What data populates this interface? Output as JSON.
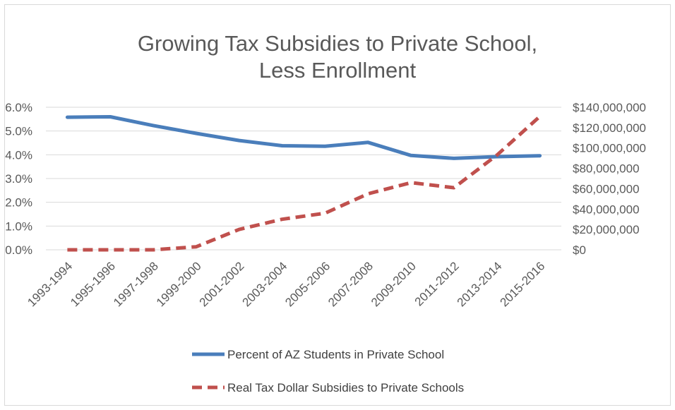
{
  "chart_data": {
    "type": "line",
    "title_lines": [
      "Growing Tax Subsidies to Private School,",
      "Less Enrollment"
    ],
    "categories": [
      "1993-1994",
      "1995-1996",
      "1997-1998",
      "1999-2000",
      "2001-2002",
      "2003-2004",
      "2005-2006",
      "2007-2008",
      "2009-2010",
      "2011-2012",
      "2013-2014",
      "2015-2016"
    ],
    "left_axis": {
      "ylim": [
        0,
        6.0
      ],
      "ticks": [
        "0.0%",
        "1.0%",
        "2.0%",
        "3.0%",
        "4.0%",
        "5.0%",
        "6.0%"
      ]
    },
    "right_axis": {
      "ylim": [
        0,
        140000000
      ],
      "ticks": [
        "$0",
        "$20,000,000",
        "$40,000,000",
        "$60,000,000",
        "$80,000,000",
        "$100,000,000",
        "$120,000,000",
        "$140,000,000"
      ]
    },
    "series": [
      {
        "name": "Percent of AZ Students in Private School",
        "axis": "left",
        "color": "#4a7ebb",
        "style": "solid",
        "values": [
          5.58,
          5.6,
          5.23,
          4.9,
          4.6,
          4.38,
          4.36,
          4.52,
          3.97,
          3.85,
          3.92,
          3.96
        ]
      },
      {
        "name": "Real Tax Dollar Subsidies to Private Schools",
        "axis": "right",
        "color": "#c0504d",
        "style": "dashed",
        "values": [
          0,
          0,
          0,
          3000000,
          20000000,
          30000000,
          36000000,
          55000000,
          66000000,
          61000000,
          93000000,
          131000000
        ]
      }
    ],
    "legend_position": "bottom",
    "grid": true
  }
}
